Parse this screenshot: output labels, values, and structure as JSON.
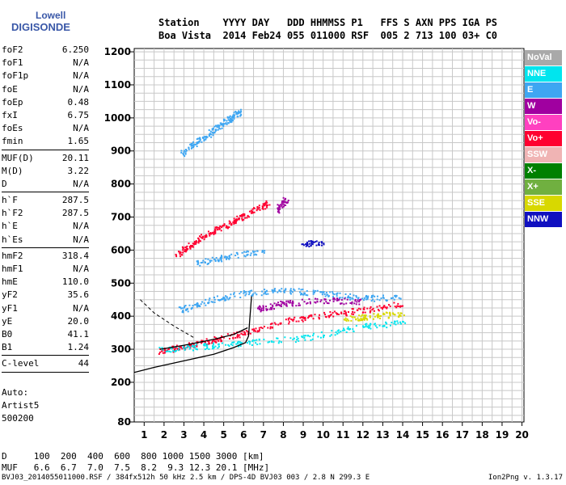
{
  "logo": {
    "line1": "Lowell",
    "line2": "DIGISONDE"
  },
  "header": {
    "line1": "Station    YYYY DAY   DDD HHMMSS P1   FFS S AXN PPS IGA PS",
    "line2": "Boa Vista  2014 Feb24 055 011000 RSF  005 2 713 100 03+ C0"
  },
  "params": [
    {
      "name": "foF2",
      "value": "6.250"
    },
    {
      "name": "foF1",
      "value": "N/A"
    },
    {
      "name": "foF1p",
      "value": "N/A"
    },
    {
      "name": "foE",
      "value": "N/A"
    },
    {
      "name": "foEp",
      "value": "0.48"
    },
    {
      "name": "fxI",
      "value": "6.75"
    },
    {
      "name": "foEs",
      "value": "N/A"
    },
    {
      "name": "fmin",
      "value": "1.65"
    },
    {
      "sep": true
    },
    {
      "name": "MUF(D)",
      "value": "20.11"
    },
    {
      "name": "M(D)",
      "value": "3.22"
    },
    {
      "name": "D",
      "value": "N/A"
    },
    {
      "sep": true
    },
    {
      "name": "h`F",
      "value": "287.5"
    },
    {
      "name": "h`F2",
      "value": "287.5"
    },
    {
      "name": "h`E",
      "value": "N/A"
    },
    {
      "name": "h`Es",
      "value": "N/A"
    },
    {
      "sep": true
    },
    {
      "name": "hmF2",
      "value": "318.4"
    },
    {
      "name": "hmF1",
      "value": "N/A"
    },
    {
      "name": "hmE",
      "value": "110.0"
    },
    {
      "name": "yF2",
      "value": "35.6"
    },
    {
      "name": "yF1",
      "value": "N/A"
    },
    {
      "name": "yE",
      "value": "20.0"
    },
    {
      "name": "B0",
      "value": "41.1"
    },
    {
      "name": "B1",
      "value": "1.24"
    },
    {
      "sep": true
    },
    {
      "name": "C-level",
      "value": "44"
    },
    {
      "sep": true
    }
  ],
  "auto": {
    "line1": "Auto:",
    "line2": "Artist5",
    "line3": "500200"
  },
  "legend": [
    {
      "label": "NoVal",
      "color": "#a9a9a9"
    },
    {
      "label": "NNE",
      "color": "#00e5ee"
    },
    {
      "label": "E",
      "color": "#3ea6f2"
    },
    {
      "label": "W",
      "color": "#a000a0"
    },
    {
      "label": "Vo-",
      "color": "#ff40c0"
    },
    {
      "label": "Vo+",
      "color": "#ff0030"
    },
    {
      "label": "SSW",
      "color": "#f0b4b4"
    },
    {
      "label": "X-",
      "color": "#008000"
    },
    {
      "label": "X+",
      "color": "#70b040"
    },
    {
      "label": "SSE",
      "color": "#d8d800"
    },
    {
      "label": "NNW",
      "color": "#1010c0"
    }
  ],
  "dtable": {
    "line1": "D     100  200  400  600  800 1000 1500 3000 [km]",
    "line2": "MUF   6.6  6.7  7.0  7.5  8.2  9.3 12.3 20.1 [MHz]"
  },
  "footer": {
    "text": "BVJ03_2014055011000.RSF / 384fx512h 50 kHz 2.5 km / DPS-4D BVJ03 003 / 2.8 N 299.3 E",
    "version": "Ion2Png v. 1.3.17"
  },
  "chart_data": {
    "type": "scatter",
    "xlim": [
      0.5,
      20.1
    ],
    "ylim": [
      80,
      1210
    ],
    "x_ticks": [
      1,
      2,
      3,
      4,
      5,
      6,
      7,
      8,
      9,
      10,
      11,
      12,
      13,
      14,
      15,
      16,
      17,
      18,
      19,
      20
    ],
    "y_ticks": [
      80,
      200,
      300,
      400,
      500,
      600,
      700,
      800,
      900,
      1000,
      1100,
      1200
    ],
    "grid": true,
    "legend_position": "right",
    "traces": [
      {
        "color": "#ff0030",
        "points": [
          [
            2.6,
            585
          ],
          [
            3.5,
            625
          ],
          [
            4.5,
            660
          ],
          [
            5.5,
            690
          ],
          [
            6.3,
            715
          ],
          [
            7.2,
            745
          ]
        ]
      },
      {
        "color": "#3ea6f2",
        "points": [
          [
            2.9,
            895
          ],
          [
            3.8,
            935
          ],
          [
            4.6,
            970
          ],
          [
            5.3,
            1000
          ],
          [
            5.8,
            1020
          ]
        ]
      },
      {
        "color": "#3ea6f2",
        "points": [
          [
            2.8,
            420
          ],
          [
            4,
            445
          ],
          [
            6,
            470
          ],
          [
            8,
            480
          ],
          [
            10,
            470
          ],
          [
            12,
            455
          ],
          [
            14,
            460
          ]
        ]
      },
      {
        "color": "#3ea6f2",
        "points": [
          [
            3.5,
            560
          ],
          [
            5,
            580
          ],
          [
            7,
            600
          ]
        ]
      },
      {
        "color": "#ff0030",
        "points": [
          [
            1.8,
            295
          ],
          [
            3,
            310
          ],
          [
            4.5,
            330
          ],
          [
            6,
            350
          ],
          [
            8,
            385
          ],
          [
            10,
            405
          ],
          [
            12,
            420
          ],
          [
            14,
            440
          ]
        ]
      },
      {
        "color": "#00e5ee",
        "points": [
          [
            1.8,
            300
          ],
          [
            4,
            310
          ],
          [
            6,
            320
          ],
          [
            9,
            335
          ],
          [
            12,
            370
          ],
          [
            14,
            380
          ]
        ]
      },
      {
        "color": "#a000a0",
        "points": [
          [
            6.5,
            420
          ],
          [
            8,
            440
          ],
          [
            10,
            450
          ],
          [
            12,
            445
          ]
        ]
      },
      {
        "color": "#d8d800",
        "points": [
          [
            11,
            395
          ],
          [
            12.5,
            400
          ],
          [
            14,
            410
          ]
        ]
      },
      {
        "color": "#1010c0",
        "points": [
          [
            9,
            620
          ],
          [
            10,
            625
          ]
        ]
      },
      {
        "color": "#a000a0",
        "points": [
          [
            7.6,
            720
          ],
          [
            8.2,
            760
          ]
        ]
      }
    ],
    "profile_curve": [
      [
        0.5,
        230
      ],
      [
        1.5,
        245
      ],
      [
        3,
        265
      ],
      [
        4.5,
        285
      ],
      [
        5.5,
        305
      ],
      [
        6.1,
        320
      ],
      [
        6.25,
        340
      ],
      [
        6.3,
        380
      ],
      [
        6.4,
        460
      ]
    ],
    "trace_curve": [
      [
        1.8,
        300
      ],
      [
        3,
        312
      ],
      [
        4.5,
        330
      ],
      [
        5.5,
        345
      ],
      [
        6.2,
        365
      ]
    ],
    "dashed_curve": [
      [
        0.8,
        450
      ],
      [
        1.5,
        410
      ],
      [
        2.5,
        370
      ],
      [
        3.5,
        335
      ]
    ]
  }
}
